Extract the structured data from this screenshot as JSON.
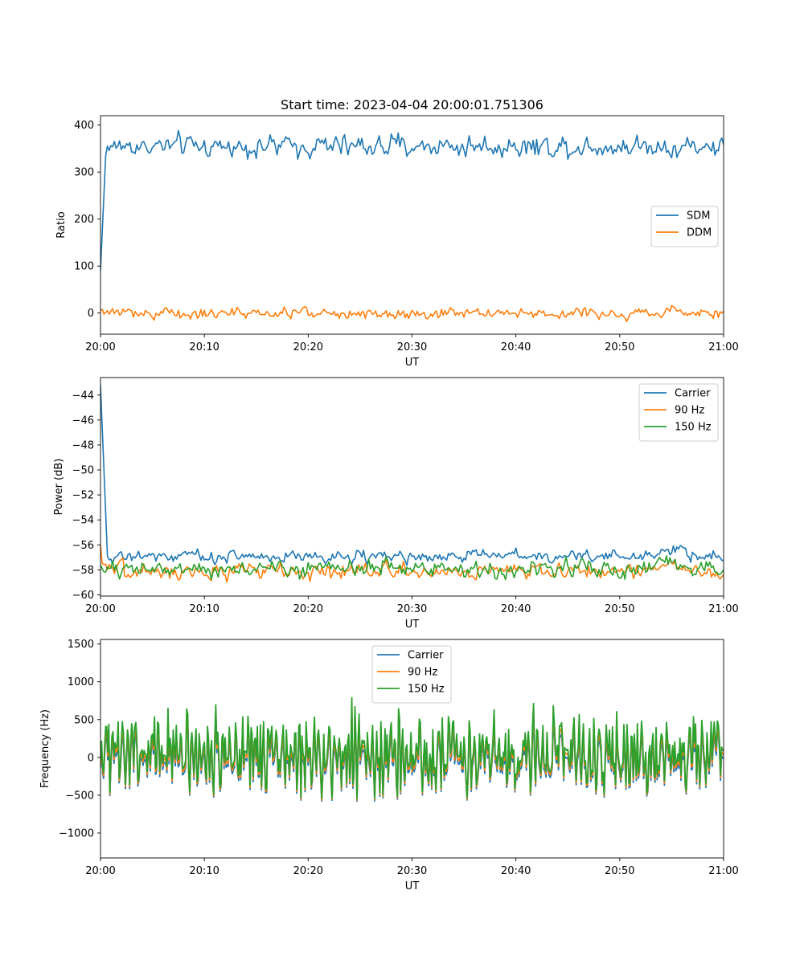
{
  "figure": {
    "title": "Start time: 2023-04-04 20:00:01.751306"
  },
  "colors": {
    "blue": "#1f77b4",
    "orange": "#ff7f0e",
    "green": "#2ca02c"
  },
  "chart_data": [
    {
      "type": "line",
      "title": "Start time: 2023-04-04 20:00:01.751306",
      "xlabel": "UT",
      "ylabel": "Ratio",
      "xlim": [
        "20:00",
        "21:00"
      ],
      "ylim": [
        -45,
        420
      ],
      "x_ticks": [
        "20:00",
        "20:10",
        "20:20",
        "20:30",
        "20:40",
        "20:50",
        "21:00"
      ],
      "y_ticks": [
        0,
        100,
        200,
        300,
        400
      ],
      "legend_position": "center-right",
      "samples_per_hour": 360,
      "series": [
        {
          "name": "SDM",
          "color": "#1f77b4",
          "start_value": 90,
          "mean": 355,
          "noise": 16
        },
        {
          "name": "DDM",
          "color": "#ff7f0e",
          "start_value": 5,
          "mean": 0,
          "noise": 8
        }
      ]
    },
    {
      "type": "line",
      "title": "",
      "xlabel": "UT",
      "ylabel": "Power (dB)",
      "xlim": [
        "20:00",
        "21:00"
      ],
      "ylim": [
        -60.1,
        -42.6
      ],
      "x_ticks": [
        "20:00",
        "20:10",
        "20:20",
        "20:30",
        "20:40",
        "20:50",
        "21:00"
      ],
      "y_ticks": [
        -60,
        -58,
        -56,
        -54,
        -52,
        -50,
        -48,
        -46,
        -44
      ],
      "legend_position": "upper-right",
      "samples_per_hour": 360,
      "series": [
        {
          "name": "Carrier",
          "color": "#1f77b4",
          "start_value": -43.2,
          "mean": -56.9,
          "noise": 0.35
        },
        {
          "name": "90 Hz",
          "color": "#ff7f0e",
          "start_value": -56.0,
          "mean": -58.1,
          "noise": 0.45
        },
        {
          "name": "150 Hz",
          "color": "#2ca02c",
          "start_value": -57.6,
          "mean": -57.9,
          "noise": 0.45
        }
      ]
    },
    {
      "type": "line",
      "title": "",
      "xlabel": "UT",
      "ylabel": "Frequency (Hz)",
      "xlim": [
        "20:00",
        "21:00"
      ],
      "ylim": [
        -1330,
        1560
      ],
      "x_ticks": [
        "20:00",
        "20:10",
        "20:20",
        "20:30",
        "20:40",
        "20:50",
        "21:00"
      ],
      "y_ticks": [
        -1000,
        -500,
        0,
        500,
        1000,
        1500
      ],
      "legend_position": "upper-center",
      "samples_per_hour": 600,
      "series": [
        {
          "name": "Carrier",
          "color": "#1f77b4",
          "mean": -50,
          "noise": 430
        },
        {
          "name": "90 Hz",
          "color": "#ff7f0e",
          "mean": 0,
          "noise": 430
        },
        {
          "name": "150 Hz",
          "color": "#2ca02c",
          "mean": 50,
          "noise": 430
        }
      ]
    }
  ]
}
